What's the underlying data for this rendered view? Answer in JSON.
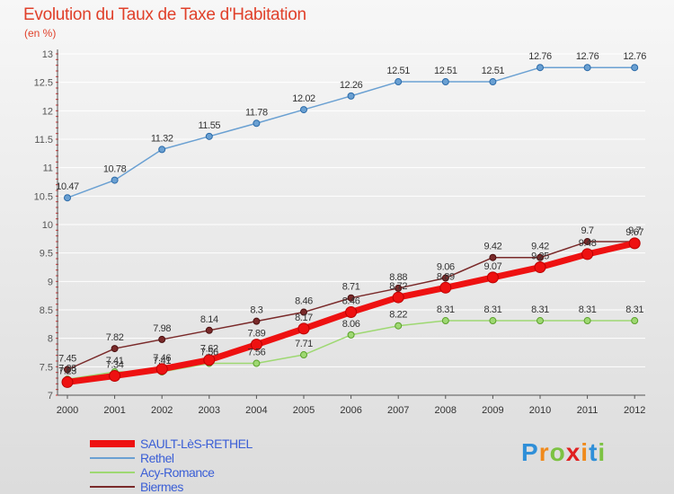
{
  "title": "Evolution du Taux de Taxe d'Habitation",
  "unit": "(en %)",
  "logo": {
    "text": "Proxiti",
    "letters": [
      "P",
      "r",
      "o",
      "x",
      "i",
      "t",
      "i"
    ],
    "colors": [
      "#2f8fd8",
      "#f08a1c",
      "#7cc242",
      "#e02020",
      "#f08a1c",
      "#2f8fd8",
      "#7cc242"
    ]
  },
  "chart_data": {
    "type": "line",
    "title": "Evolution du Taux de Taxe d'Habitation",
    "ylabel": "(en %)",
    "x": [
      "2000",
      "2001",
      "2002",
      "2003",
      "2004",
      "2005",
      "2006",
      "2007",
      "2008",
      "2009",
      "2010",
      "2011",
      "2012"
    ],
    "ylim": [
      7,
      13
    ],
    "yticks": [
      "7",
      "7.5",
      "8",
      "8.5",
      "9",
      "9.5",
      "10",
      "10.5",
      "11",
      "11.5",
      "12",
      "12.5",
      "13"
    ],
    "legend_position": "bottom-left",
    "series": [
      {
        "name": "SAULT-LèS-RETHEL",
        "color": "#ee1111",
        "style": "thick",
        "values": [
          7.23,
          7.34,
          7.46,
          7.62,
          7.89,
          8.17,
          8.46,
          8.72,
          8.89,
          9.07,
          9.25,
          9.48,
          9.67
        ],
        "labels": [
          "7.23",
          "7.34",
          "7.46",
          "7.62",
          "7.89",
          "8.17",
          "8.46",
          "8.72",
          "8.89",
          "9.07",
          "9.25",
          "9.48",
          "9.67"
        ]
      },
      {
        "name": "Rethel",
        "color": "#6aa0d2",
        "style": "thin",
        "values": [
          10.47,
          10.78,
          11.32,
          11.55,
          11.78,
          12.02,
          12.26,
          12.51,
          12.51,
          12.51,
          12.76,
          12.76,
          12.76
        ],
        "labels": [
          "10.47",
          "10.78",
          "11.32",
          "11.55",
          "11.78",
          "12.02",
          "12.26",
          "12.51",
          "12.51",
          "12.51",
          "12.76",
          "12.76",
          "12.76"
        ]
      },
      {
        "name": "Acy-Romance",
        "color": "#9ed872",
        "style": "thin",
        "values": [
          7.28,
          7.41,
          7.41,
          7.56,
          7.56,
          7.71,
          8.06,
          8.22,
          8.31,
          8.31,
          8.31,
          8.31,
          8.31
        ],
        "labels": [
          "7.28",
          "7.41",
          "7.41",
          "7.56",
          "7.56",
          "7.71",
          "8.06",
          "8.22",
          "8.31",
          "8.31",
          "8.31",
          "8.31",
          "8.31"
        ]
      },
      {
        "name": "Biermes",
        "color": "#7a2a2a",
        "style": "thin",
        "values": [
          7.45,
          7.82,
          7.98,
          8.14,
          8.3,
          8.46,
          8.71,
          8.88,
          9.06,
          9.42,
          9.42,
          9.7,
          9.7
        ],
        "labels": [
          "7.45",
          "7.82",
          "7.98",
          "8.14",
          "8.3",
          "8.46",
          "8.71",
          "8.88",
          "9.06",
          "9.42",
          "9.42",
          "9.7",
          "9.7"
        ]
      }
    ]
  }
}
